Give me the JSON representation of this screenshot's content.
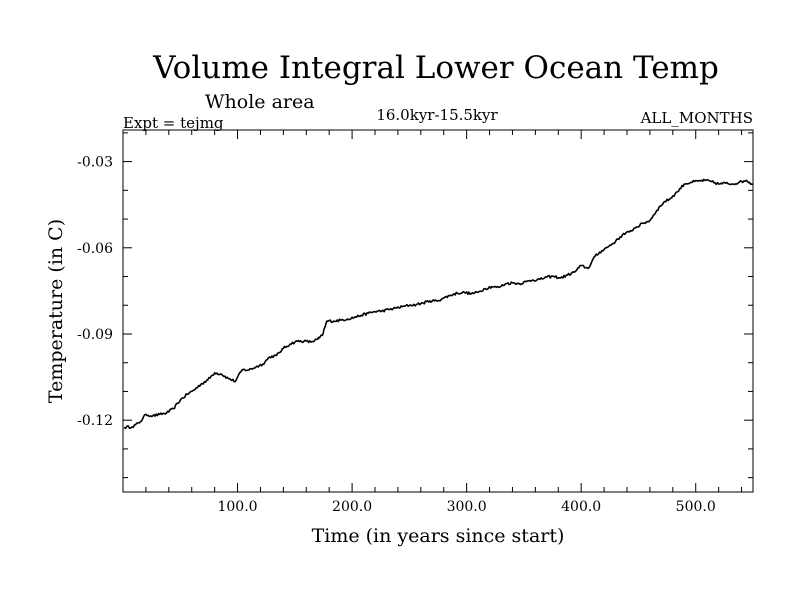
{
  "chart_data": {
    "type": "line",
    "title": "Volume Integral Lower Ocean Temp",
    "subtitle": "Whole area",
    "experiment_label": "Expt = tejmg",
    "period_label": "16.0kyr-15.5kyr",
    "months_label": "ALL_MONTHS",
    "xlabel": "Time (in years since start)",
    "ylabel": "Temperature (in C)",
    "xlim": [
      0,
      550
    ],
    "ylim": [
      -0.145,
      -0.019
    ],
    "x_ticks": [
      100,
      200,
      300,
      400,
      500
    ],
    "x_tick_labels": [
      "100.0",
      "200.0",
      "300.0",
      "400.0",
      "500.0"
    ],
    "y_ticks": [
      -0.12,
      -0.09,
      -0.06,
      -0.03
    ],
    "y_tick_labels": [
      "-0.12",
      "-0.09",
      "-0.06",
      "-0.03"
    ],
    "grid": false,
    "series": [
      {
        "name": "tejmg",
        "color": "#000000",
        "x": [
          1,
          8,
          14,
          20,
          26,
          32,
          38,
          44,
          50,
          56,
          62,
          68,
          74,
          80,
          86,
          92,
          98,
          104,
          110,
          116,
          122,
          128,
          134,
          140,
          146,
          152,
          158,
          164,
          170,
          174,
          178,
          184,
          190,
          196,
          202,
          208,
          214,
          220,
          226,
          232,
          238,
          244,
          250,
          256,
          262,
          268,
          274,
          280,
          286,
          292,
          298,
          304,
          310,
          316,
          322,
          328,
          334,
          340,
          346,
          352,
          358,
          364,
          370,
          376,
          382,
          388,
          394,
          400,
          406,
          412,
          418,
          424,
          430,
          436,
          442,
          448,
          454,
          460,
          466,
          472,
          478,
          484,
          490,
          496,
          502,
          508,
          514,
          520,
          526,
          532,
          538,
          544,
          550
        ],
        "values": [
          -0.1225,
          -0.1223,
          -0.121,
          -0.118,
          -0.1185,
          -0.118,
          -0.1175,
          -0.116,
          -0.113,
          -0.111,
          -0.1095,
          -0.1075,
          -0.106,
          -0.1035,
          -0.104,
          -0.1055,
          -0.1065,
          -0.1025,
          -0.1025,
          -0.1015,
          -0.1005,
          -0.098,
          -0.0975,
          -0.095,
          -0.0935,
          -0.0925,
          -0.0925,
          -0.0928,
          -0.0918,
          -0.0905,
          -0.0855,
          -0.0855,
          -0.0852,
          -0.0848,
          -0.0842,
          -0.0835,
          -0.0828,
          -0.0822,
          -0.082,
          -0.0815,
          -0.081,
          -0.0805,
          -0.08,
          -0.0798,
          -0.0792,
          -0.0785,
          -0.0785,
          -0.0775,
          -0.0765,
          -0.0758,
          -0.0755,
          -0.076,
          -0.0755,
          -0.0742,
          -0.0735,
          -0.0738,
          -0.0725,
          -0.0722,
          -0.0725,
          -0.0718,
          -0.0712,
          -0.071,
          -0.0702,
          -0.07,
          -0.0705,
          -0.0695,
          -0.0685,
          -0.0662,
          -0.0672,
          -0.063,
          -0.061,
          -0.0595,
          -0.0578,
          -0.0555,
          -0.0545,
          -0.0528,
          -0.0515,
          -0.0505,
          -0.047,
          -0.0442,
          -0.0428,
          -0.0405,
          -0.0378,
          -0.0372,
          -0.0368,
          -0.0365,
          -0.037,
          -0.0378,
          -0.0375,
          -0.0378,
          -0.0372,
          -0.0365,
          -0.038
        ]
      }
    ]
  }
}
